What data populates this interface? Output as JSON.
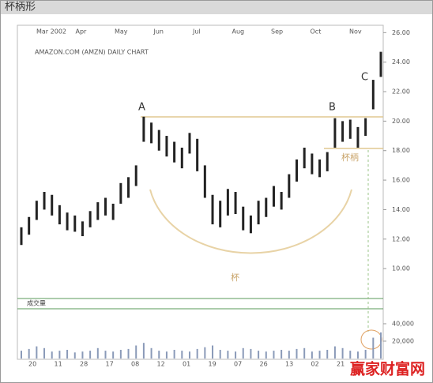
{
  "chart_data": {
    "type": "range-bar",
    "title": "杯柄形",
    "subtitle": "AMAZON.COM (AMZN) DAILY CHART",
    "months": [
      "Mar 2002",
      "Apr",
      "May",
      "Jun",
      "Jul",
      "Aug",
      "Sep",
      "Oct",
      "Nov"
    ],
    "days": [
      "20",
      "11",
      "28",
      "17",
      "08",
      "12",
      "01",
      "19",
      "07",
      "26",
      "13",
      "02",
      "21"
    ],
    "annotations": {
      "a": "A",
      "b": "B",
      "c": "C",
      "cup": "杯",
      "handle": "杯柄",
      "volume": "成交量"
    },
    "watermark": "赢家财富网",
    "color": "#222",
    "volume_color": "#8a9ab8",
    "ylim": [
      8.4,
      26.5
    ],
    "yticks": [
      {
        "value": 10,
        "label": "10.00"
      },
      {
        "value": 12,
        "label": "12.00"
      },
      {
        "value": 14,
        "label": "14.00"
      },
      {
        "value": 16,
        "label": "16.00"
      },
      {
        "value": 18,
        "label": "18.00"
      },
      {
        "value": 20,
        "label": "20.00"
      },
      {
        "value": 22,
        "label": "22.00"
      },
      {
        "value": 24,
        "label": "24.00"
      },
      {
        "value": 26,
        "label": "26.00"
      }
    ],
    "vlim": [
      0,
      53600
    ],
    "vticks": [
      {
        "value": 20000,
        "label": "20,000"
      },
      {
        "value": 40000,
        "label": "40,000"
      }
    ],
    "high": [
      12.8,
      13.5,
      14.6,
      15.2,
      15.0,
      14.3,
      13.8,
      13.6,
      13.2,
      13.9,
      14.5,
      14.8,
      14.4,
      15.8,
      16.2,
      17.0,
      20.3,
      19.9,
      19.4,
      19.0,
      18.6,
      18.2,
      19.2,
      18.8,
      17.0,
      15.0,
      14.6,
      15.4,
      15.2,
      14.2,
      13.6,
      14.6,
      14.8,
      15.6,
      15.2,
      16.4,
      17.4,
      18.2,
      17.8,
      17.4,
      17.9,
      20.2,
      20.0,
      20.1,
      19.6,
      20.2,
      22.8,
      24.7
    ],
    "low": [
      11.6,
      12.3,
      13.3,
      14.0,
      13.6,
      13.0,
      12.6,
      12.5,
      12.2,
      12.8,
      13.3,
      13.6,
      13.3,
      14.4,
      14.8,
      15.6,
      18.6,
      18.5,
      18.0,
      17.6,
      17.2,
      16.8,
      17.8,
      16.6,
      14.8,
      13.0,
      12.8,
      13.6,
      13.7,
      12.6,
      12.4,
      13.0,
      13.5,
      14.2,
      14.0,
      14.8,
      15.9,
      16.8,
      16.4,
      16.2,
      16.6,
      18.2,
      18.6,
      18.8,
      18.2,
      19.0,
      20.8,
      23.0
    ],
    "volume": [
      9000,
      11000,
      14000,
      12000,
      8000,
      9000,
      10000,
      7000,
      8000,
      9000,
      12000,
      9000,
      8000,
      10000,
      11000,
      15000,
      18000,
      12000,
      9000,
      8000,
      10000,
      9000,
      8000,
      11000,
      13000,
      15000,
      10000,
      9000,
      8000,
      12000,
      11000,
      9000,
      8000,
      9000,
      10000,
      9000,
      11000,
      12000,
      8000,
      9000,
      10000,
      14000,
      12000,
      9000,
      8000,
      10000,
      24000,
      30000
    ]
  }
}
